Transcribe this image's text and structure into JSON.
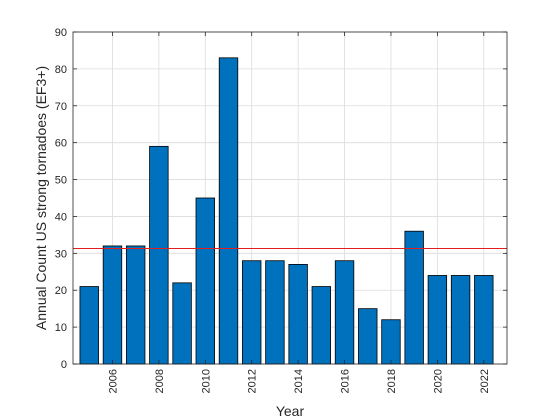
{
  "chart_data": {
    "type": "bar",
    "title": "",
    "xlabel": "Year",
    "ylabel": "Annual Count US strong tornadoes (EF3+)",
    "x": [
      2005,
      2006,
      2007,
      2008,
      2009,
      2010,
      2011,
      2012,
      2013,
      2014,
      2015,
      2016,
      2017,
      2018,
      2019,
      2020,
      2021,
      2022
    ],
    "values": [
      21,
      32,
      32,
      59,
      22,
      45,
      83,
      28,
      28,
      27,
      21,
      28,
      15,
      12,
      36,
      24,
      24,
      24
    ],
    "xlim": [
      2004.3,
      2023.0
    ],
    "ylim": [
      0,
      90
    ],
    "xticks": [
      2006,
      2008,
      2010,
      2012,
      2014,
      2016,
      2018,
      2020,
      2022
    ],
    "yticks": [
      0,
      10,
      20,
      30,
      40,
      50,
      60,
      70,
      80,
      90
    ],
    "xtick_rotation": -90,
    "reference_line": {
      "y": 31.3,
      "color": "#e02020"
    },
    "bar_color": "#0072bd",
    "bar_edge_color": "#000000",
    "grid": true
  }
}
